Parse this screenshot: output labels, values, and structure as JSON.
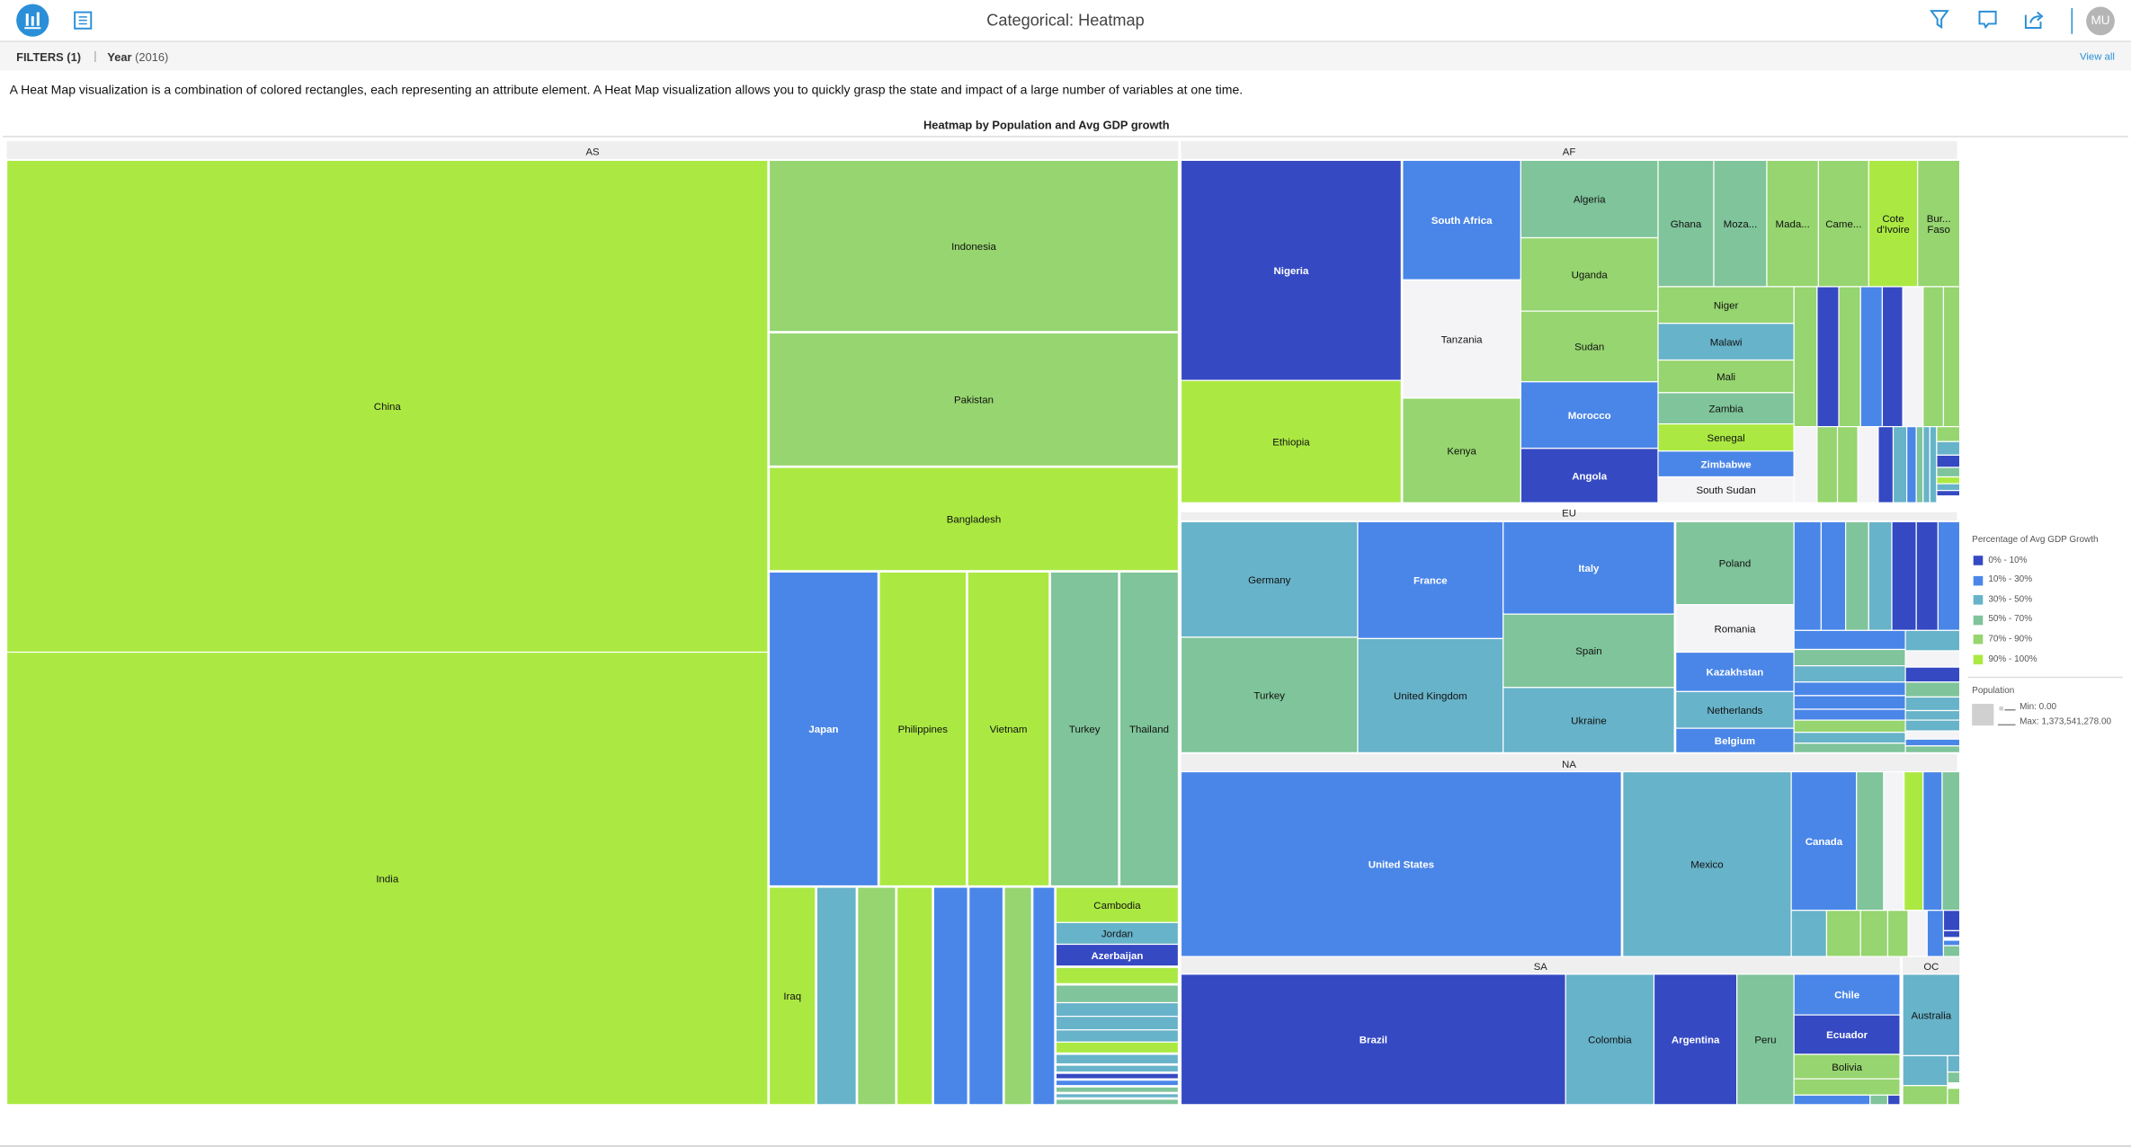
{
  "header": {
    "title": "Categorical: Heatmap",
    "avatar_initials": "MU",
    "icons": [
      "bar-chart-icon",
      "list-icon",
      "filter-icon",
      "comment-icon",
      "share-icon"
    ]
  },
  "filters": {
    "label": "FILTERS (1)",
    "separator": "|",
    "field": "Year",
    "value": "(2016)",
    "view_all": "View all"
  },
  "description": "A Heat Map visualization is a combination of colored rectangles, each representing an attribute element. A Heat Map visualization allows you to quickly grasp the state and impact of a large number of variables at one time.",
  "chart_data": {
    "type": "heatmap",
    "title": "Heatmap by Population and Avg GDP growth",
    "regions": [
      "AS",
      "AF",
      "EU",
      "NA",
      "SA",
      "OC"
    ],
    "legend": {
      "color_title": "Percentage of Avg GDP Growth",
      "bands": [
        {
          "label": "0% - 10%",
          "color": "#3549c2"
        },
        {
          "label": "10% - 30%",
          "color": "#4a86e8"
        },
        {
          "label": "30% - 50%",
          "color": "#67b3c9"
        },
        {
          "label": "50% - 70%",
          "color": "#7fc49a"
        },
        {
          "label": "70% - 90%",
          "color": "#96d56f"
        },
        {
          "label": "90% - 100%",
          "color": "#abe942"
        }
      ],
      "no_data_color": "#f4f4f6",
      "size_title": "Population",
      "size_min": "Min: 0.00",
      "size_max": "Max: 1,373,541,278.00"
    },
    "cells": [
      [
        "AS",
        "China",
        5
      ],
      [
        "AS",
        "India",
        5
      ],
      [
        "AS",
        "Indonesia",
        4
      ],
      [
        "AS",
        "Pakistan",
        4
      ],
      [
        "AS",
        "Bangladesh",
        5
      ],
      [
        "AS",
        "Japan",
        1
      ],
      [
        "AS",
        "Philippines",
        5
      ],
      [
        "AS",
        "Vietnam",
        5
      ],
      [
        "AS",
        "Turkey",
        3
      ],
      [
        "AS",
        "Thailand",
        3
      ],
      [
        "AS",
        "Iraq",
        5
      ],
      [
        "AS",
        "",
        2
      ],
      [
        "AS",
        "",
        4
      ],
      [
        "AS",
        "",
        5
      ],
      [
        "AS",
        "",
        1
      ],
      [
        "AS",
        "",
        1
      ],
      [
        "AS",
        "",
        4
      ],
      [
        "AS",
        "",
        1
      ],
      [
        "AS",
        "Cambodia",
        5
      ],
      [
        "AS",
        "Jordan",
        2
      ],
      [
        "AS",
        "Azerbaijan",
        0
      ],
      [
        "AS",
        "",
        5
      ],
      [
        "AS",
        "",
        3
      ],
      [
        "AS",
        "",
        2
      ],
      [
        "AS",
        "",
        2
      ],
      [
        "AS",
        "",
        2
      ],
      [
        "AS",
        "",
        5
      ],
      [
        "AS",
        "",
        2
      ],
      [
        "AS",
        "",
        2
      ],
      [
        "AS",
        "",
        0
      ],
      [
        "AS",
        "",
        1
      ],
      [
        "AS",
        "",
        3
      ],
      [
        "AS",
        "",
        2
      ],
      [
        "AS",
        "",
        3
      ],
      [
        "AF",
        "Nigeria",
        0
      ],
      [
        "AF",
        "Ethiopia",
        5
      ],
      [
        "AF",
        "South Africa",
        1
      ],
      [
        "AF",
        "Tanzania",
        null
      ],
      [
        "AF",
        "Kenya",
        4
      ],
      [
        "AF",
        "Algeria",
        3
      ],
      [
        "AF",
        "Uganda",
        4
      ],
      [
        "AF",
        "Sudan",
        4
      ],
      [
        "AF",
        "Morocco",
        1
      ],
      [
        "AF",
        "Angola",
        0
      ],
      [
        "AF",
        "Ghana",
        3
      ],
      [
        "AF",
        "Moza...",
        3
      ],
      [
        "AF",
        "Mada...",
        4
      ],
      [
        "AF",
        "Came...",
        4
      ],
      [
        "AF",
        "Cote\nd'Ivoire",
        5
      ],
      [
        "AF",
        "Bur...\nFaso",
        4
      ],
      [
        "AF",
        "Niger",
        4
      ],
      [
        "AF",
        "Malawi",
        2
      ],
      [
        "AF",
        "Mali",
        4
      ],
      [
        "AF",
        "Zambia",
        3
      ],
      [
        "AF",
        "Senegal",
        5
      ],
      [
        "AF",
        "Zimbabwe",
        1
      ],
      [
        "AF",
        "South Sudan",
        null
      ],
      [
        "AF",
        "",
        4
      ],
      [
        "AF",
        "",
        0
      ],
      [
        "AF",
        "",
        4
      ],
      [
        "AF",
        "",
        1
      ],
      [
        "AF",
        "",
        0
      ],
      [
        "AF",
        "",
        null
      ],
      [
        "AF",
        "",
        4
      ],
      [
        "AF",
        "",
        4
      ],
      [
        "AF",
        "",
        null
      ],
      [
        "AF",
        "",
        4
      ],
      [
        "AF",
        "",
        4
      ],
      [
        "AF",
        "",
        null
      ],
      [
        "AF",
        "",
        0
      ],
      [
        "AF",
        "",
        2
      ],
      [
        "AF",
        "",
        1
      ],
      [
        "AF",
        "",
        3
      ],
      [
        "AF",
        "",
        2
      ],
      [
        "AF",
        "",
        2
      ],
      [
        "AF",
        "",
        4
      ],
      [
        "AF",
        "",
        2
      ],
      [
        "AF",
        "",
        0
      ],
      [
        "AF",
        "",
        3
      ],
      [
        "AF",
        "",
        5
      ],
      [
        "AF",
        "",
        2
      ],
      [
        "AF",
        "",
        0
      ],
      [
        "EU",
        "Germany",
        2
      ],
      [
        "EU",
        "Turkey",
        3
      ],
      [
        "EU",
        "France",
        1
      ],
      [
        "EU",
        "United Kingdom",
        2
      ],
      [
        "EU",
        "Italy",
        1
      ],
      [
        "EU",
        "Spain",
        3
      ],
      [
        "EU",
        "Ukraine",
        2
      ],
      [
        "EU",
        "Poland",
        3
      ],
      [
        "EU",
        "Romania",
        null
      ],
      [
        "EU",
        "Kazakhstan",
        1
      ],
      [
        "EU",
        "Netherlands",
        2
      ],
      [
        "EU",
        "Belgium",
        1
      ],
      [
        "EU",
        "",
        1
      ],
      [
        "EU",
        "",
        1
      ],
      [
        "EU",
        "",
        3
      ],
      [
        "EU",
        "",
        2
      ],
      [
        "EU",
        "",
        0
      ],
      [
        "EU",
        "",
        0
      ],
      [
        "EU",
        "",
        1
      ],
      [
        "EU",
        "",
        1
      ],
      [
        "EU",
        "",
        3
      ],
      [
        "EU",
        "",
        2
      ],
      [
        "EU",
        "",
        1
      ],
      [
        "EU",
        "",
        1
      ],
      [
        "EU",
        "",
        1
      ],
      [
        "EU",
        "",
        4
      ],
      [
        "EU",
        "",
        2
      ],
      [
        "EU",
        "",
        3
      ],
      [
        "EU",
        "",
        2
      ],
      [
        "EU",
        "",
        null
      ],
      [
        "EU",
        "",
        0
      ],
      [
        "EU",
        "",
        3
      ],
      [
        "EU",
        "",
        2
      ],
      [
        "EU",
        "",
        2
      ],
      [
        "EU",
        "",
        2
      ],
      [
        "EU",
        "",
        null
      ],
      [
        "EU",
        "",
        1
      ],
      [
        "EU",
        "",
        3
      ],
      [
        "NA",
        "United States",
        1
      ],
      [
        "NA",
        "Mexico",
        2
      ],
      [
        "NA",
        "Canada",
        1
      ],
      [
        "NA",
        "",
        3
      ],
      [
        "NA",
        "",
        null
      ],
      [
        "NA",
        "",
        5
      ],
      [
        "NA",
        "",
        1
      ],
      [
        "NA",
        "",
        3
      ],
      [
        "NA",
        "",
        2
      ],
      [
        "NA",
        "",
        4
      ],
      [
        "NA",
        "",
        4
      ],
      [
        "NA",
        "",
        4
      ],
      [
        "NA",
        "",
        null
      ],
      [
        "NA",
        "",
        1
      ],
      [
        "NA",
        "",
        0
      ],
      [
        "NA",
        "",
        0
      ],
      [
        "NA",
        "",
        1
      ],
      [
        "NA",
        "",
        3
      ],
      [
        "SA",
        "Brazil",
        0
      ],
      [
        "SA",
        "Colombia",
        2
      ],
      [
        "SA",
        "Argentina",
        0
      ],
      [
        "SA",
        "Peru",
        3
      ],
      [
        "SA",
        "Chile",
        1
      ],
      [
        "SA",
        "Ecuador",
        0
      ],
      [
        "SA",
        "Bolivia",
        4
      ],
      [
        "SA",
        "",
        4
      ],
      [
        "SA",
        "",
        1
      ],
      [
        "SA",
        "",
        3
      ],
      [
        "SA",
        "",
        0
      ],
      [
        "OC",
        "Australia",
        2
      ],
      [
        "OC",
        "",
        2
      ],
      [
        "OC",
        "",
        4
      ],
      [
        "OC",
        "",
        2
      ],
      [
        "OC",
        "",
        3
      ],
      [
        "OC",
        "",
        4
      ]
    ]
  }
}
